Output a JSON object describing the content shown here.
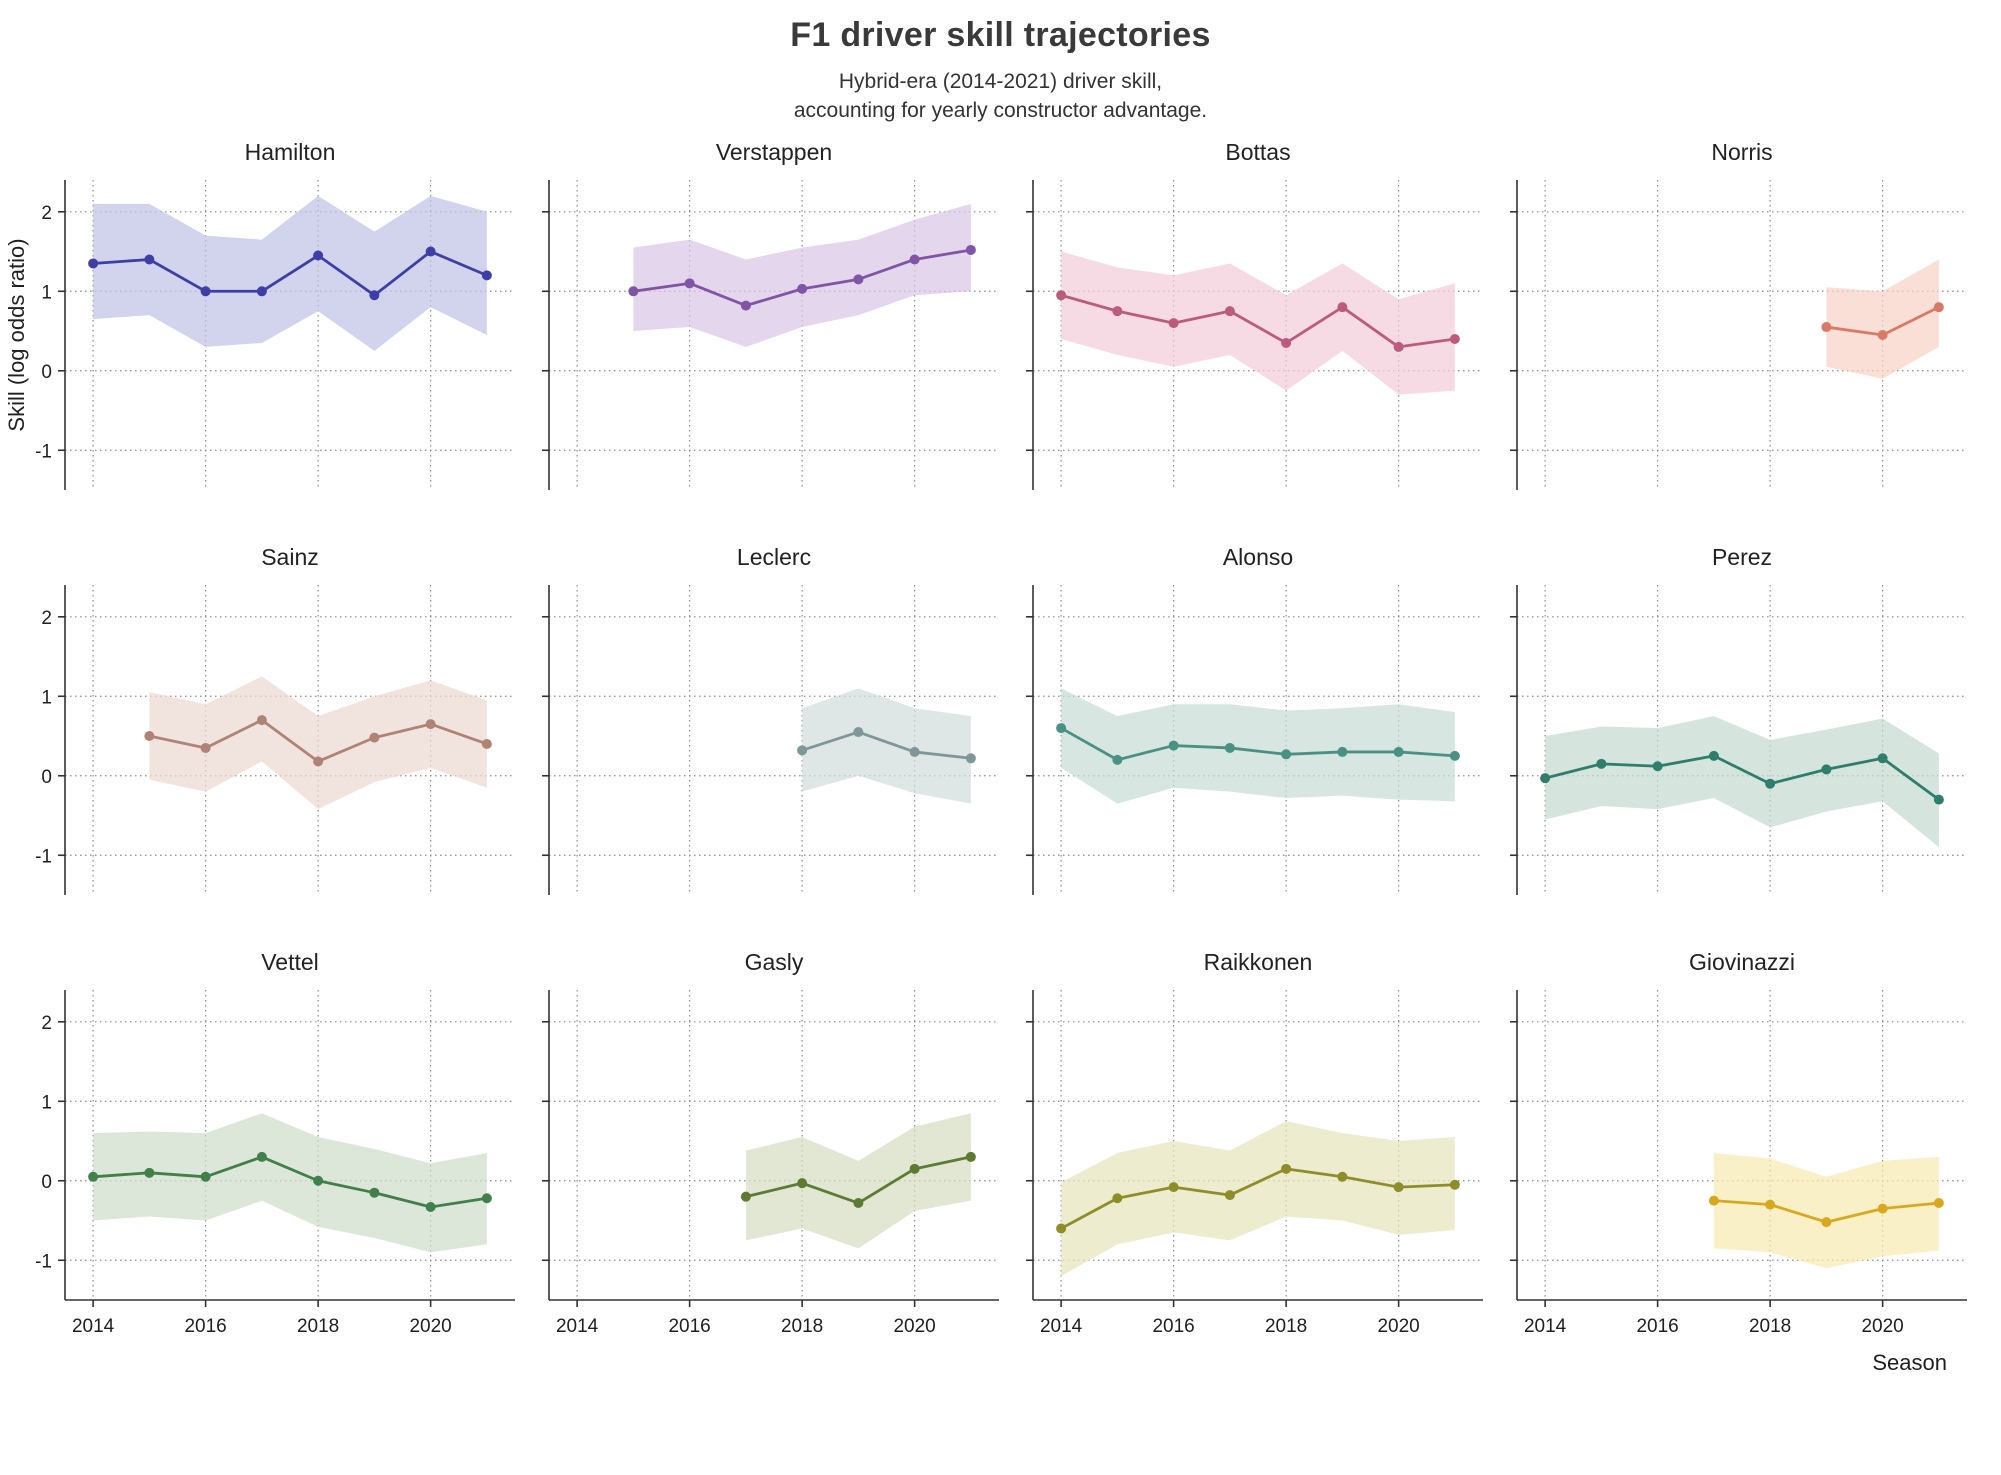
{
  "header": {
    "title": "F1 driver skill trajectories",
    "subtitle_lines": [
      "Hybrid-era (2014-2021) driver skill,",
      "accounting for yearly constructor advantage."
    ]
  },
  "axes": {
    "xlabel": "Season",
    "ylabel": "Skill (log odds ratio)"
  },
  "chart_data": {
    "type": "line",
    "facet_layout": {
      "columns": 4,
      "rows": 3
    },
    "grid": true,
    "x_ticks": [
      2014,
      2016,
      2018,
      2020
    ],
    "y_ticks": [
      2,
      1,
      0,
      -1
    ],
    "xlim": [
      2013.5,
      2021.5
    ],
    "ylim": [
      -1.5,
      2.4
    ],
    "facets": [
      {
        "name": "Hamilton",
        "line_color": "#3d3fa5",
        "band_color": "#bfc4e4",
        "x": [
          2014,
          2015,
          2016,
          2017,
          2018,
          2019,
          2020,
          2021
        ],
        "y": [
          1.35,
          1.4,
          1.0,
          1.0,
          1.45,
          0.95,
          1.5,
          1.2
        ],
        "y_upper": [
          2.1,
          2.1,
          1.7,
          1.65,
          2.2,
          1.75,
          2.2,
          2.0
        ],
        "y_lower": [
          0.65,
          0.7,
          0.3,
          0.35,
          0.75,
          0.25,
          0.8,
          0.45
        ]
      },
      {
        "name": "Verstappen",
        "line_color": "#8055a5",
        "band_color": "#d8c6e6",
        "x": [
          2015,
          2016,
          2017,
          2018,
          2019,
          2020,
          2021
        ],
        "y": [
          1.0,
          1.1,
          0.82,
          1.03,
          1.15,
          1.4,
          1.52
        ],
        "y_upper": [
          1.55,
          1.65,
          1.4,
          1.55,
          1.65,
          1.9,
          2.1
        ],
        "y_lower": [
          0.5,
          0.55,
          0.3,
          0.55,
          0.7,
          0.95,
          1.0
        ]
      },
      {
        "name": "Bottas",
        "line_color": "#bb5b7e",
        "band_color": "#f2cdd9",
        "x": [
          2014,
          2015,
          2016,
          2017,
          2018,
          2019,
          2020,
          2021
        ],
        "y": [
          0.95,
          0.75,
          0.6,
          0.75,
          0.35,
          0.8,
          0.3,
          0.4
        ],
        "y_upper": [
          1.5,
          1.3,
          1.2,
          1.35,
          0.95,
          1.35,
          0.9,
          1.1
        ],
        "y_lower": [
          0.4,
          0.2,
          0.05,
          0.2,
          -0.25,
          0.25,
          -0.3,
          -0.25
        ]
      },
      {
        "name": "Norris",
        "line_color": "#d97a68",
        "band_color": "#f8d2c8",
        "x": [
          2019,
          2020,
          2021
        ],
        "y": [
          0.55,
          0.45,
          0.8
        ],
        "y_upper": [
          1.05,
          1.0,
          1.4
        ],
        "y_lower": [
          0.05,
          -0.1,
          0.3
        ]
      },
      {
        "name": "Sainz",
        "line_color": "#b08377",
        "band_color": "#ecdad2",
        "x": [
          2015,
          2016,
          2017,
          2018,
          2019,
          2020,
          2021
        ],
        "y": [
          0.5,
          0.35,
          0.7,
          0.18,
          0.48,
          0.65,
          0.4
        ],
        "y_upper": [
          1.05,
          0.9,
          1.25,
          0.75,
          1.0,
          1.2,
          0.95
        ],
        "y_lower": [
          -0.05,
          -0.2,
          0.18,
          -0.42,
          -0.08,
          0.1,
          -0.15
        ]
      },
      {
        "name": "Leclerc",
        "line_color": "#7f9798",
        "band_color": "#d3dedd",
        "x": [
          2018,
          2019,
          2020,
          2021
        ],
        "y": [
          0.32,
          0.55,
          0.3,
          0.22
        ],
        "y_upper": [
          0.85,
          1.1,
          0.85,
          0.75
        ],
        "y_lower": [
          -0.2,
          0.0,
          -0.22,
          -0.35
        ]
      },
      {
        "name": "Alonso",
        "line_color": "#4a9184",
        "band_color": "#c8ddd6",
        "x": [
          2014,
          2015,
          2016,
          2017,
          2018,
          2019,
          2020,
          2021
        ],
        "y": [
          0.6,
          0.2,
          0.38,
          0.35,
          0.27,
          0.3,
          0.3,
          0.25
        ],
        "y_upper": [
          1.1,
          0.75,
          0.9,
          0.9,
          0.82,
          0.85,
          0.9,
          0.8
        ],
        "y_lower": [
          0.1,
          -0.35,
          -0.15,
          -0.2,
          -0.28,
          -0.25,
          -0.3,
          -0.32
        ]
      },
      {
        "name": "Perez",
        "line_color": "#2f7d6b",
        "band_color": "#c6d9d1",
        "x": [
          2014,
          2015,
          2016,
          2017,
          2018,
          2019,
          2020,
          2021
        ],
        "y": [
          -0.03,
          0.15,
          0.12,
          0.25,
          -0.1,
          0.08,
          0.22,
          -0.3
        ],
        "y_upper": [
          0.5,
          0.62,
          0.6,
          0.75,
          0.45,
          0.58,
          0.72,
          0.28
        ],
        "y_lower": [
          -0.55,
          -0.38,
          -0.42,
          -0.28,
          -0.65,
          -0.45,
          -0.32,
          -0.9
        ]
      },
      {
        "name": "Vettel",
        "line_color": "#41804a",
        "band_color": "#cfdecb",
        "x": [
          2014,
          2015,
          2016,
          2017,
          2018,
          2019,
          2020,
          2021
        ],
        "y": [
          0.05,
          0.1,
          0.05,
          0.3,
          0.0,
          -0.15,
          -0.33,
          -0.22
        ],
        "y_upper": [
          0.6,
          0.62,
          0.6,
          0.85,
          0.55,
          0.4,
          0.22,
          0.35
        ],
        "y_lower": [
          -0.5,
          -0.45,
          -0.5,
          -0.25,
          -0.58,
          -0.72,
          -0.9,
          -0.8
        ]
      },
      {
        "name": "Gasly",
        "line_color": "#5d7b35",
        "band_color": "#d6dec0",
        "x": [
          2017,
          2018,
          2019,
          2020,
          2021
        ],
        "y": [
          -0.2,
          -0.03,
          -0.28,
          0.15,
          0.3
        ],
        "y_upper": [
          0.38,
          0.55,
          0.25,
          0.68,
          0.85
        ],
        "y_lower": [
          -0.75,
          -0.6,
          -0.85,
          -0.38,
          -0.25
        ]
      },
      {
        "name": "Raikkonen",
        "line_color": "#8f8d2b",
        "band_color": "#e6e4bd",
        "x": [
          2014,
          2015,
          2016,
          2017,
          2018,
          2019,
          2020,
          2021
        ],
        "y": [
          -0.6,
          -0.22,
          -0.08,
          -0.18,
          0.15,
          0.05,
          -0.08,
          -0.05
        ],
        "y_upper": [
          -0.02,
          0.35,
          0.5,
          0.38,
          0.75,
          0.6,
          0.5,
          0.55
        ],
        "y_lower": [
          -1.2,
          -0.8,
          -0.65,
          -0.75,
          -0.45,
          -0.5,
          -0.68,
          -0.62
        ]
      },
      {
        "name": "Giovinazzi",
        "line_color": "#d8a820",
        "band_color": "#f8eab2",
        "x": [
          2017,
          2018,
          2019,
          2020,
          2021
        ],
        "y": [
          -0.25,
          -0.3,
          -0.52,
          -0.35,
          -0.28
        ],
        "y_upper": [
          0.35,
          0.28,
          0.05,
          0.25,
          0.3
        ],
        "y_lower": [
          -0.85,
          -0.9,
          -1.1,
          -0.95,
          -0.88
        ]
      }
    ]
  }
}
